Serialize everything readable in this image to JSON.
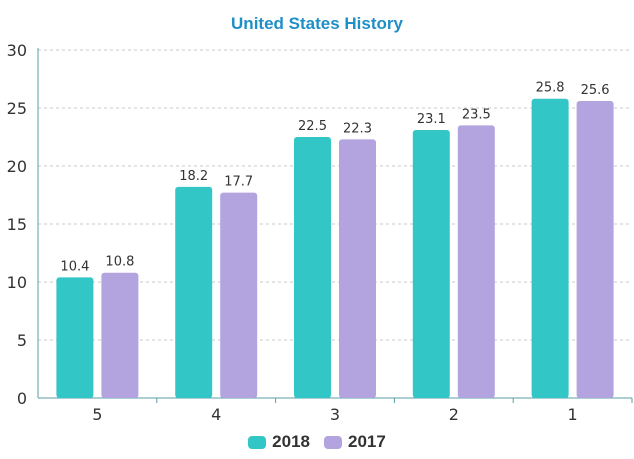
{
  "chart_data": {
    "type": "bar",
    "title": "United States History",
    "xlabel": "",
    "ylabel": "",
    "categories": [
      "5",
      "4",
      "3",
      "2",
      "1"
    ],
    "series": [
      {
        "name": "2018",
        "color": "#33c6c6",
        "values": [
          10.4,
          18.2,
          22.5,
          23.1,
          25.8
        ]
      },
      {
        "name": "2017",
        "color": "#b3a4e0",
        "values": [
          10.8,
          17.7,
          22.3,
          23.5,
          25.6
        ]
      }
    ],
    "ylim": [
      0,
      30
    ],
    "yticks": [
      0,
      5,
      10,
      15,
      20,
      25,
      30
    ],
    "grid": true,
    "legend_position": "bottom",
    "data_labels": true
  }
}
